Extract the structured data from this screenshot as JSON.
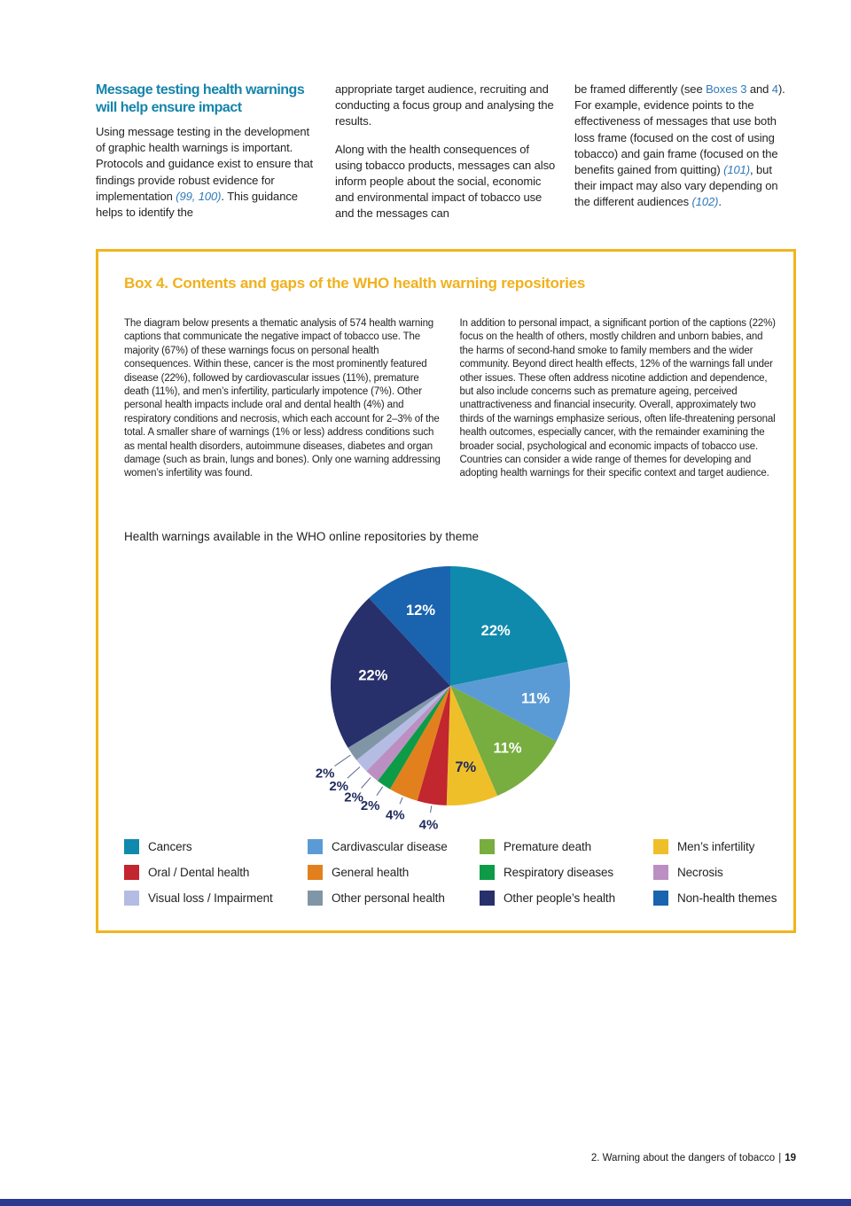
{
  "accents": {
    "box_gold": "#F2B41D",
    "heading_teal": "#1584AC",
    "link_blue": "#2E79BC",
    "bottom_bar_blue": "#2B3990",
    "pie_label_navy": "#1F2A5E"
  },
  "article": {
    "heading": "Message testing health warnings will help ensure impact",
    "col1_runs": [
      {
        "t": "Using message testing in the development of graphic health warnings is important. Protocols and guidance exist to ensure that findings provide robust evidence for implementation ",
        "s": "plain"
      },
      {
        "t": "(99, 100)",
        "s": "ref"
      },
      {
        "t": ". This guidance helps to identify the",
        "s": "plain"
      }
    ],
    "col2_para1": "appropriate target audience, recruiting and conducting a focus group and analysing the results.",
    "col2_para2": "Along with the health consequences of using tobacco products, messages can also inform people about the social, economic and environmental impact of tobacco use and the messages can",
    "col3_runs": [
      {
        "t": "be framed differently (see ",
        "s": "plain"
      },
      {
        "t": "Boxes 3",
        "s": "link"
      },
      {
        "t": " and ",
        "s": "plain"
      },
      {
        "t": "4",
        "s": "link"
      },
      {
        "t": "). For example, evidence points to the effectiveness of messages that use both loss frame (focused on the cost of using tobacco) and gain frame (focused on the benefits gained from quitting) ",
        "s": "plain"
      },
      {
        "t": "(101)",
        "s": "ref"
      },
      {
        "t": ", but their impact may also vary depending on the different audiences ",
        "s": "plain"
      },
      {
        "t": "(102)",
        "s": "ref"
      },
      {
        "t": ".",
        "s": "plain"
      }
    ]
  },
  "box": {
    "title": "Box 4. Contents and gaps of the WHO health warning repositories",
    "left_text": "The diagram below presents a thematic analysis of 574 health warning captions that communicate the negative impact of tobacco use. The majority (67%) of these warnings focus on personal health consequences. Within these, cancer is the most prominently featured disease (22%), followed by cardiovascular issues (11%), premature death (11%), and men’s infertility, particularly impotence (7%). Other personal health impacts include oral and dental health (4%) and respiratory conditions and necrosis, which each account for 2–3% of the total. A smaller share of warnings (1% or less) address conditions such as mental health disorders, autoimmune diseases, diabetes and organ damage (such as brain, lungs and bones). Only one warning addressing women’s infertility was found.",
    "right_text": "In addition to personal impact, a significant portion of the captions (22%) focus on the health of others, mostly children and unborn babies, and the harms of second-hand smoke to family members and the wider community. Beyond direct health effects, 12% of the warnings fall under other issues. These often address nicotine addiction and dependence, but also include concerns such as premature ageing, perceived unattractiveness and financial insecurity. Overall, approximately two thirds of the warnings emphasize serious, often life-threatening personal health outcomes, especially cancer, with the remainder examining the broader social, psychological and economic impacts of tobacco use. Countries can consider a wide range of themes for developing and adopting health warnings for their specific context and target audience."
  },
  "chart_data": {
    "type": "pie",
    "title": "Health warnings available in the WHO online repositories by theme",
    "start_angle_deg": 0,
    "direction": "clockwise",
    "legend_position": "bottom",
    "slices": [
      {
        "label": "Cancers",
        "value": 22,
        "pct": "22%",
        "color": "#0F8AAC"
      },
      {
        "label": "Cardivascular disease",
        "value": 11,
        "pct": "11%",
        "color": "#5B9BD5"
      },
      {
        "label": "Premature death",
        "value": 11,
        "pct": "11%",
        "color": "#78AD3F"
      },
      {
        "label": "Men’s infertility",
        "value": 7,
        "pct": "7%",
        "color": "#EFBF2A"
      },
      {
        "label": "Oral / Dental health",
        "value": 4,
        "pct": "4%",
        "color": "#C2262E"
      },
      {
        "label": "General health",
        "value": 4,
        "pct": "4%",
        "color": "#E2801E"
      },
      {
        "label": "Respiratory diseases",
        "value": 2,
        "pct": "2%",
        "color": "#0D9B47"
      },
      {
        "label": "Necrosis",
        "value": 2,
        "pct": "2%",
        "color": "#BC8FC3"
      },
      {
        "label": "Visual loss / Impairment",
        "value": 2,
        "pct": "2%",
        "color": "#B4BCE3"
      },
      {
        "label": "Other personal health",
        "value": 2,
        "pct": "2%",
        "color": "#8096A7"
      },
      {
        "label": "Other people’s health",
        "value": 22,
        "pct": "22%",
        "color": "#28306B"
      },
      {
        "label": "Non-health themes",
        "value": 12,
        "pct": "12%",
        "color": "#1A63AE"
      }
    ]
  },
  "footer": {
    "section": "2. Warning about the dangers of tobacco",
    "separator": "|",
    "page_number": "19"
  }
}
